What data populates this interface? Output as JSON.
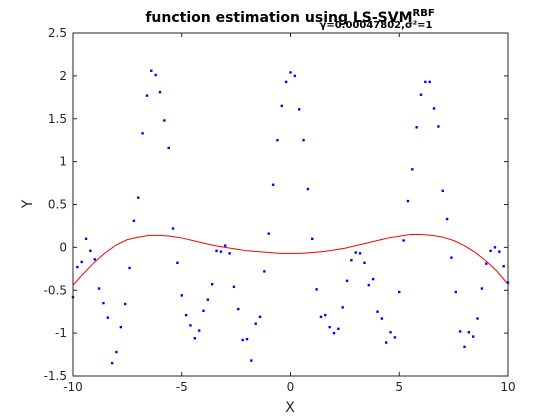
{
  "chart_data": {
    "type": "scatter",
    "title": {
      "main": "function estimation using  LS-SVM",
      "superscript": "RBF",
      "subscript": "γ=0.00047802,σ²=1"
    },
    "xlabel": "X",
    "ylabel": "Y",
    "xlim": [
      -10,
      10
    ],
    "ylim": [
      -1.5,
      2.5
    ],
    "xticks": [
      -10,
      -5,
      0,
      5,
      10
    ],
    "yticks": [
      -1.5,
      -1,
      -0.5,
      0,
      0.5,
      1,
      1.5,
      2,
      2.5
    ],
    "xtick_labels": [
      "-10",
      "-5",
      "0",
      "5",
      "10"
    ],
    "ytick_labels": [
      "-1.5",
      "-1",
      "-0.5",
      "0",
      "0.5",
      "1",
      "1.5",
      "2",
      "2.5"
    ],
    "grid": false,
    "legend": "none",
    "series": [
      {
        "kind": "scatter",
        "color": "#0000ff",
        "x": [
          -10.0,
          -9.8,
          -9.6,
          -9.4,
          -9.2,
          -9.0,
          -8.8,
          -8.6,
          -8.4,
          -8.2,
          -8.0,
          -7.8,
          -7.6,
          -7.4,
          -7.2,
          -7.0,
          -6.8,
          -6.6,
          -6.4,
          -6.2,
          -6.0,
          -5.8,
          -5.6,
          -5.4,
          -5.2,
          -5.0,
          -4.8,
          -4.6,
          -4.4,
          -4.2,
          -4.0,
          -3.8,
          -3.6,
          -3.4,
          -3.2,
          -3.0,
          -2.8,
          -2.6,
          -2.4,
          -2.2,
          -2.0,
          -1.8,
          -1.6,
          -1.4,
          -1.2,
          -1.0,
          -0.8,
          -0.6,
          -0.4,
          -0.2,
          0.0,
          0.2,
          0.4,
          0.6,
          0.8,
          1.0,
          1.2,
          1.4,
          1.6,
          1.8,
          2.0,
          2.2,
          2.4,
          2.6,
          2.8,
          3.0,
          3.2,
          3.4,
          3.6,
          3.8,
          4.0,
          4.2,
          4.4,
          4.6,
          4.8,
          5.0,
          5.2,
          5.4,
          5.6,
          5.8,
          6.0,
          6.2,
          6.4,
          6.6,
          6.8,
          7.0,
          7.2,
          7.4,
          7.6,
          7.8,
          8.0,
          8.2,
          8.4,
          8.6,
          8.8,
          9.0,
          9.2,
          9.4,
          9.6,
          9.8,
          10.0
        ],
        "y": [
          -0.58,
          -0.23,
          -0.17,
          0.1,
          -0.04,
          -0.14,
          -0.48,
          -0.65,
          -0.82,
          -1.35,
          -1.22,
          -0.93,
          -0.66,
          -0.24,
          0.31,
          0.58,
          1.33,
          1.77,
          2.06,
          2.01,
          1.81,
          1.48,
          1.16,
          0.22,
          -0.18,
          -0.56,
          -0.79,
          -0.91,
          -1.06,
          -0.97,
          -0.74,
          -0.61,
          -0.43,
          -0.04,
          -0.05,
          0.02,
          -0.07,
          -0.46,
          -0.72,
          -1.08,
          -1.07,
          -1.32,
          -0.89,
          -0.81,
          -0.28,
          0.16,
          0.73,
          1.25,
          1.65,
          1.93,
          2.04,
          2.0,
          1.61,
          1.25,
          0.68,
          0.1,
          -0.49,
          -0.81,
          -0.79,
          -0.93,
          -1.0,
          -0.95,
          -0.7,
          -0.39,
          -0.15,
          -0.06,
          -0.07,
          -0.18,
          -0.44,
          -0.37,
          -0.75,
          -0.83,
          -1.11,
          -0.99,
          -1.05,
          -0.52,
          0.08,
          0.54,
          0.91,
          1.4,
          1.78,
          1.93,
          1.93,
          1.62,
          1.41,
          0.66,
          0.33,
          -0.12,
          -0.52,
          -0.98,
          -1.16,
          -0.99,
          -1.04,
          -0.83,
          -0.48,
          -0.19,
          -0.04,
          0.0,
          -0.05,
          -0.22,
          -0.41
        ]
      },
      {
        "kind": "line",
        "color": "#ff0000",
        "x": [
          -10,
          -9.5,
          -9,
          -8.5,
          -8,
          -7.5,
          -7,
          -6.5,
          -6,
          -5.5,
          -5,
          -4.5,
          -4,
          -3.5,
          -3,
          -2.5,
          -2,
          -1.5,
          -1,
          -0.5,
          0,
          0.5,
          1,
          1.5,
          2,
          2.5,
          3,
          3.5,
          4,
          4.5,
          5,
          5.5,
          6,
          6.5,
          7,
          7.5,
          8,
          8.5,
          9,
          9.5,
          10
        ],
        "y": [
          -0.44,
          -0.3,
          -0.17,
          -0.06,
          0.03,
          0.09,
          0.12,
          0.14,
          0.14,
          0.13,
          0.11,
          0.08,
          0.05,
          0.02,
          0.0,
          -0.02,
          -0.04,
          -0.05,
          -0.06,
          -0.07,
          -0.07,
          -0.07,
          -0.06,
          -0.05,
          -0.03,
          -0.01,
          0.02,
          0.05,
          0.08,
          0.11,
          0.13,
          0.15,
          0.15,
          0.14,
          0.12,
          0.08,
          0.02,
          -0.06,
          -0.16,
          -0.28,
          -0.43
        ]
      }
    ],
    "colors": {
      "axis": "#262626",
      "background": "#ffffff"
    }
  }
}
